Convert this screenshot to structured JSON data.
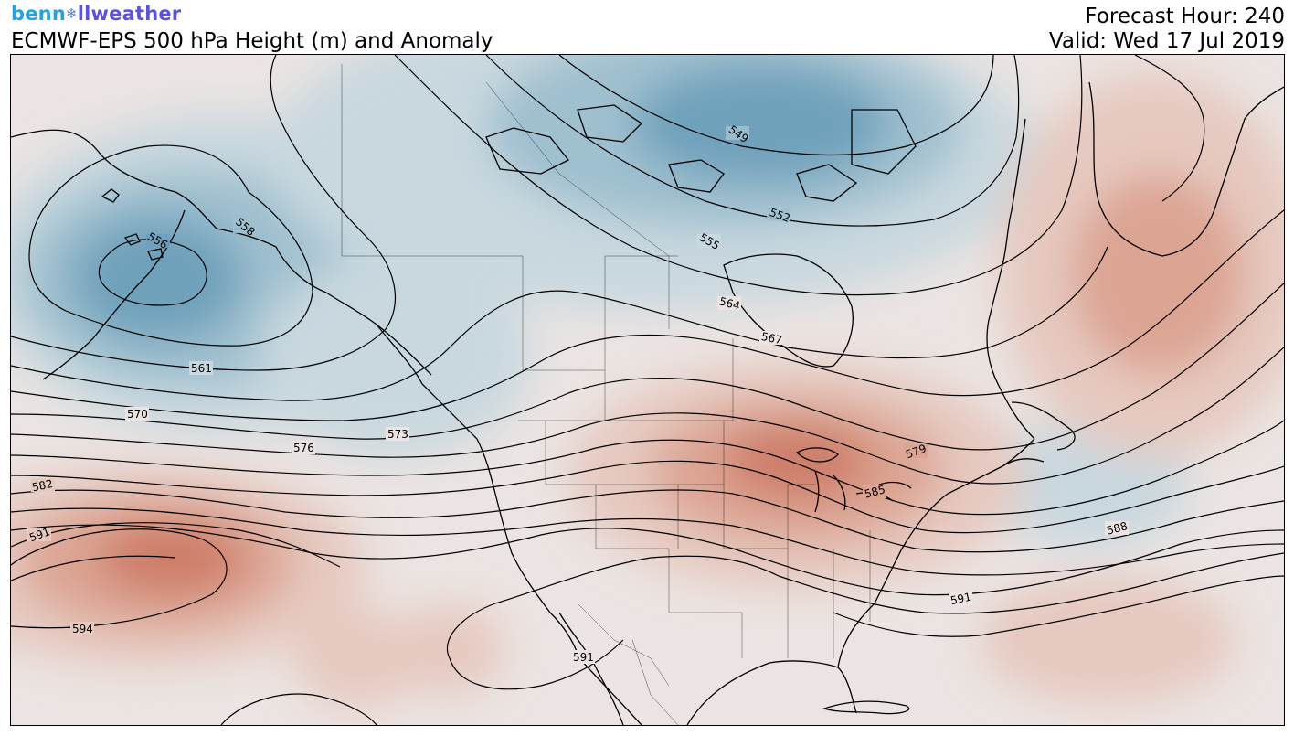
{
  "header": {
    "brand": {
      "part1": "benn",
      "part2": "llweather",
      "icon": "snowflake-icon"
    },
    "title": "ECMWF-EPS 500 hPa Height (m) and Anomaly",
    "forecast_hour": "Forecast Hour: 240",
    "valid": "Valid: Wed 17 Jul 2019"
  },
  "map": {
    "colors": {
      "neutral": "#ebe4e2",
      "light_blue": "#c9d8df",
      "mid_blue": "#9fc0cf",
      "dark_blue": "#6fa1bb",
      "light_red": "#e6c9c0",
      "mid_red": "#dca493",
      "dark_red": "#cd7d67",
      "contour": "#000000"
    },
    "contour_labels": [
      "549",
      "552",
      "555",
      "558",
      "561",
      "564",
      "567",
      "570",
      "573",
      "576",
      "579",
      "582",
      "585",
      "588",
      "591",
      "594"
    ],
    "label_556": "556",
    "label_591_gulf": "591",
    "label_591_south": "591",
    "label_591_west": "591"
  }
}
